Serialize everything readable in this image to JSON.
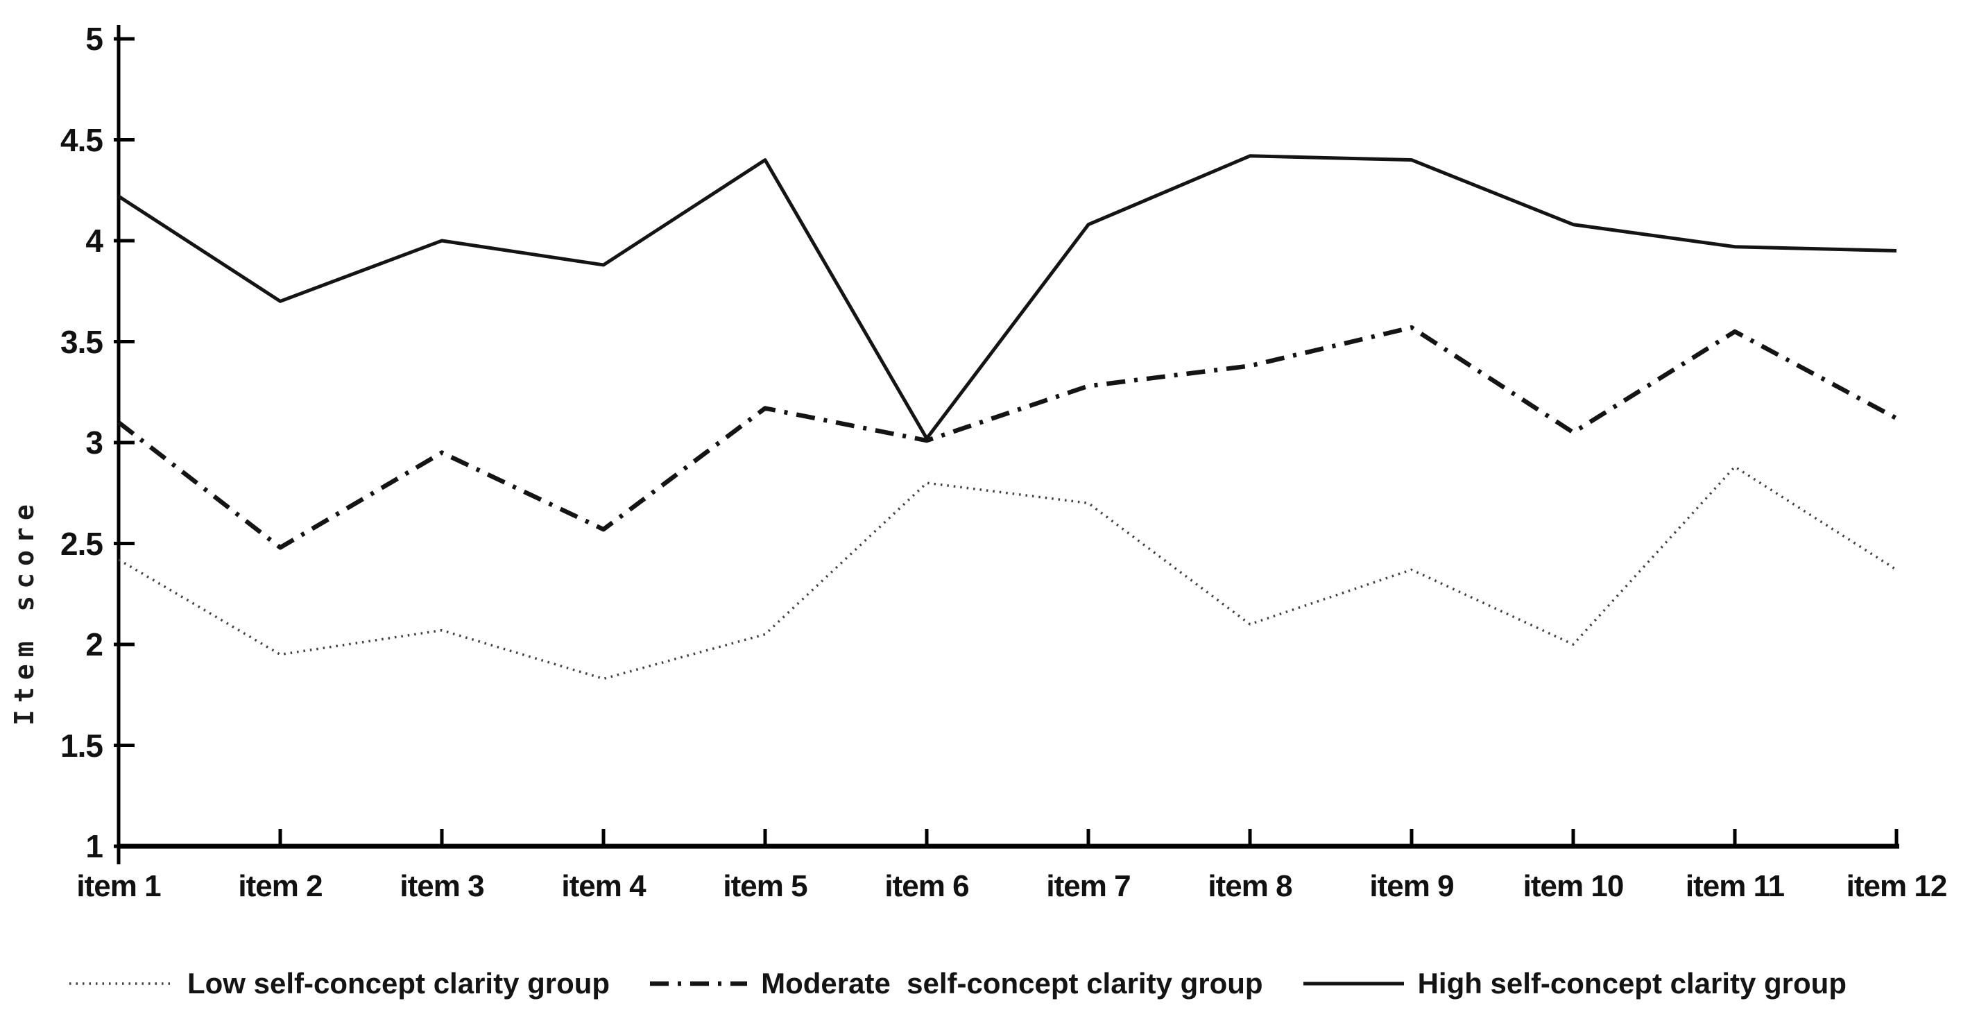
{
  "chart_data": {
    "type": "line",
    "title": "",
    "xlabel": "",
    "ylabel": "Item score",
    "categories": [
      "item 1",
      "item 2",
      "item 3",
      "item 4",
      "item 5",
      "item 6",
      "item 7",
      "item 8",
      "item 9",
      "item 10",
      "item 11",
      "item 12"
    ],
    "ylim": [
      1,
      5
    ],
    "ytick_step": 0.5,
    "ytick_labels": [
      "1",
      "1.5",
      "2",
      "2.5",
      "3",
      "3.5",
      "4",
      "4.5",
      "5"
    ],
    "grid": false,
    "legend_position": "bottom",
    "series": [
      {
        "name": "Low self-concept clarity group",
        "style": "dotted",
        "values": [
          2.42,
          1.95,
          2.07,
          1.83,
          2.05,
          2.8,
          2.7,
          2.1,
          2.37,
          2.0,
          2.88,
          2.37
        ]
      },
      {
        "name": "Moderate  self-concept clarity group",
        "style": "dashdot",
        "values": [
          3.1,
          2.48,
          2.95,
          2.57,
          3.17,
          3.01,
          3.28,
          3.38,
          3.57,
          3.05,
          3.55,
          3.12
        ]
      },
      {
        "name": "High self-concept clarity group",
        "style": "solid",
        "values": [
          4.22,
          3.7,
          4.0,
          3.88,
          4.4,
          3.02,
          4.08,
          4.42,
          4.4,
          4.08,
          3.97,
          3.95
        ]
      }
    ],
    "colors": {
      "axis": "#000000",
      "text": "#111111",
      "line_dark": "#141414",
      "line_dotted": "#3f3f3f",
      "background": "#ffffff"
    }
  }
}
